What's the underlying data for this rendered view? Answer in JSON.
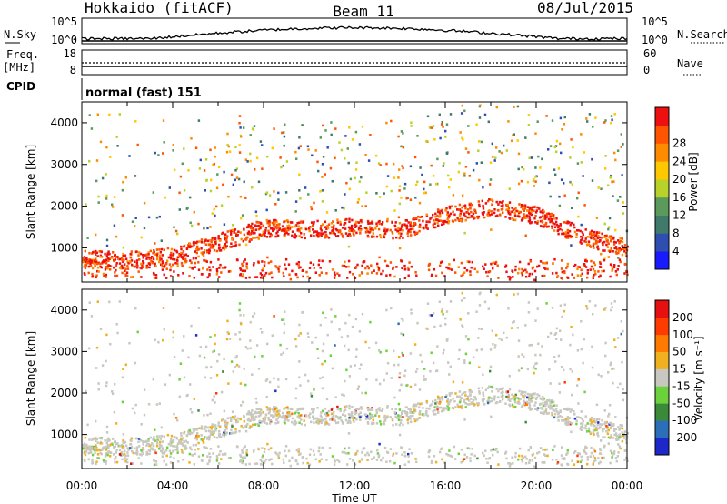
{
  "header": {
    "radar_title": "Hokkaido (fitACF)",
    "beam_title": "Beam 11",
    "date": "08/Jul/2015"
  },
  "noise_panel": {
    "left_label": "N.Sky",
    "left_ticks": [
      "10^5",
      "10^0"
    ],
    "right_label": "N.Search",
    "right_ticks": [
      "10^5",
      "10^0"
    ]
  },
  "freq_panel": {
    "left_label": "Freq.",
    "left_unit": "[MHz]",
    "left_ticks": [
      "18",
      "8"
    ],
    "right_label": "Nave",
    "right_ticks": [
      "60",
      "0"
    ]
  },
  "cpid_panel": {
    "label": "CPID",
    "value": "normal (fast) 151"
  },
  "chart_data": [
    {
      "type": "heatmap",
      "name": "power",
      "ylabel": "Slant Range [km]",
      "xlabel": "",
      "x_ticks": [
        "00:00",
        "04:00",
        "08:00",
        "12:00",
        "16:00",
        "20:00",
        "00:00"
      ],
      "x_range_hours": [
        0,
        24
      ],
      "y_ticks": [
        1000,
        2000,
        3000,
        4000
      ],
      "ylim": [
        180,
        4500
      ],
      "colorbar": {
        "label": "Power [dB]",
        "tick_labels": [
          "4",
          "8",
          "12",
          "16",
          "20",
          "24",
          "28"
        ],
        "colors": [
          "#1a1aff",
          "#2f4fb0",
          "#3f7a6a",
          "#5a9a5a",
          "#b8d22a",
          "#ffc800",
          "#ff8c00",
          "#ff5500",
          "#ee1010"
        ]
      },
      "scatter_band": [
        {
          "t": 0,
          "r": 750
        },
        {
          "t": 2,
          "r": 720
        },
        {
          "t": 4,
          "r": 820
        },
        {
          "t": 6,
          "r": 1150
        },
        {
          "t": 8,
          "r": 1500
        },
        {
          "t": 10,
          "r": 1450
        },
        {
          "t": 12,
          "r": 1520
        },
        {
          "t": 14,
          "r": 1450
        },
        {
          "t": 16,
          "r": 1800
        },
        {
          "t": 18,
          "r": 2000
        },
        {
          "t": 20,
          "r": 1800
        },
        {
          "t": 22,
          "r": 1300
        },
        {
          "t": 24,
          "r": 1000
        }
      ]
    },
    {
      "type": "heatmap",
      "name": "velocity",
      "ylabel": "Slant Range [km]",
      "xlabel": "Time UT",
      "x_ticks": [
        "00:00",
        "04:00",
        "08:00",
        "12:00",
        "16:00",
        "20:00",
        "00:00"
      ],
      "x_range_hours": [
        0,
        24
      ],
      "y_ticks": [
        1000,
        2000,
        3000,
        4000
      ],
      "ylim": [
        180,
        4500
      ],
      "colorbar": {
        "label": "Velocity [m s⁻¹]",
        "tick_labels": [
          "200",
          "100",
          "50",
          "15",
          "-15",
          "-50",
          "-100",
          "-200"
        ],
        "colors": [
          "#1e28c8",
          "#2a6fb8",
          "#3a8a3a",
          "#6cd23c",
          "#c8c8c0",
          "#f0b020",
          "#ff7a00",
          "#ff3c00",
          "#e61010"
        ]
      }
    }
  ]
}
